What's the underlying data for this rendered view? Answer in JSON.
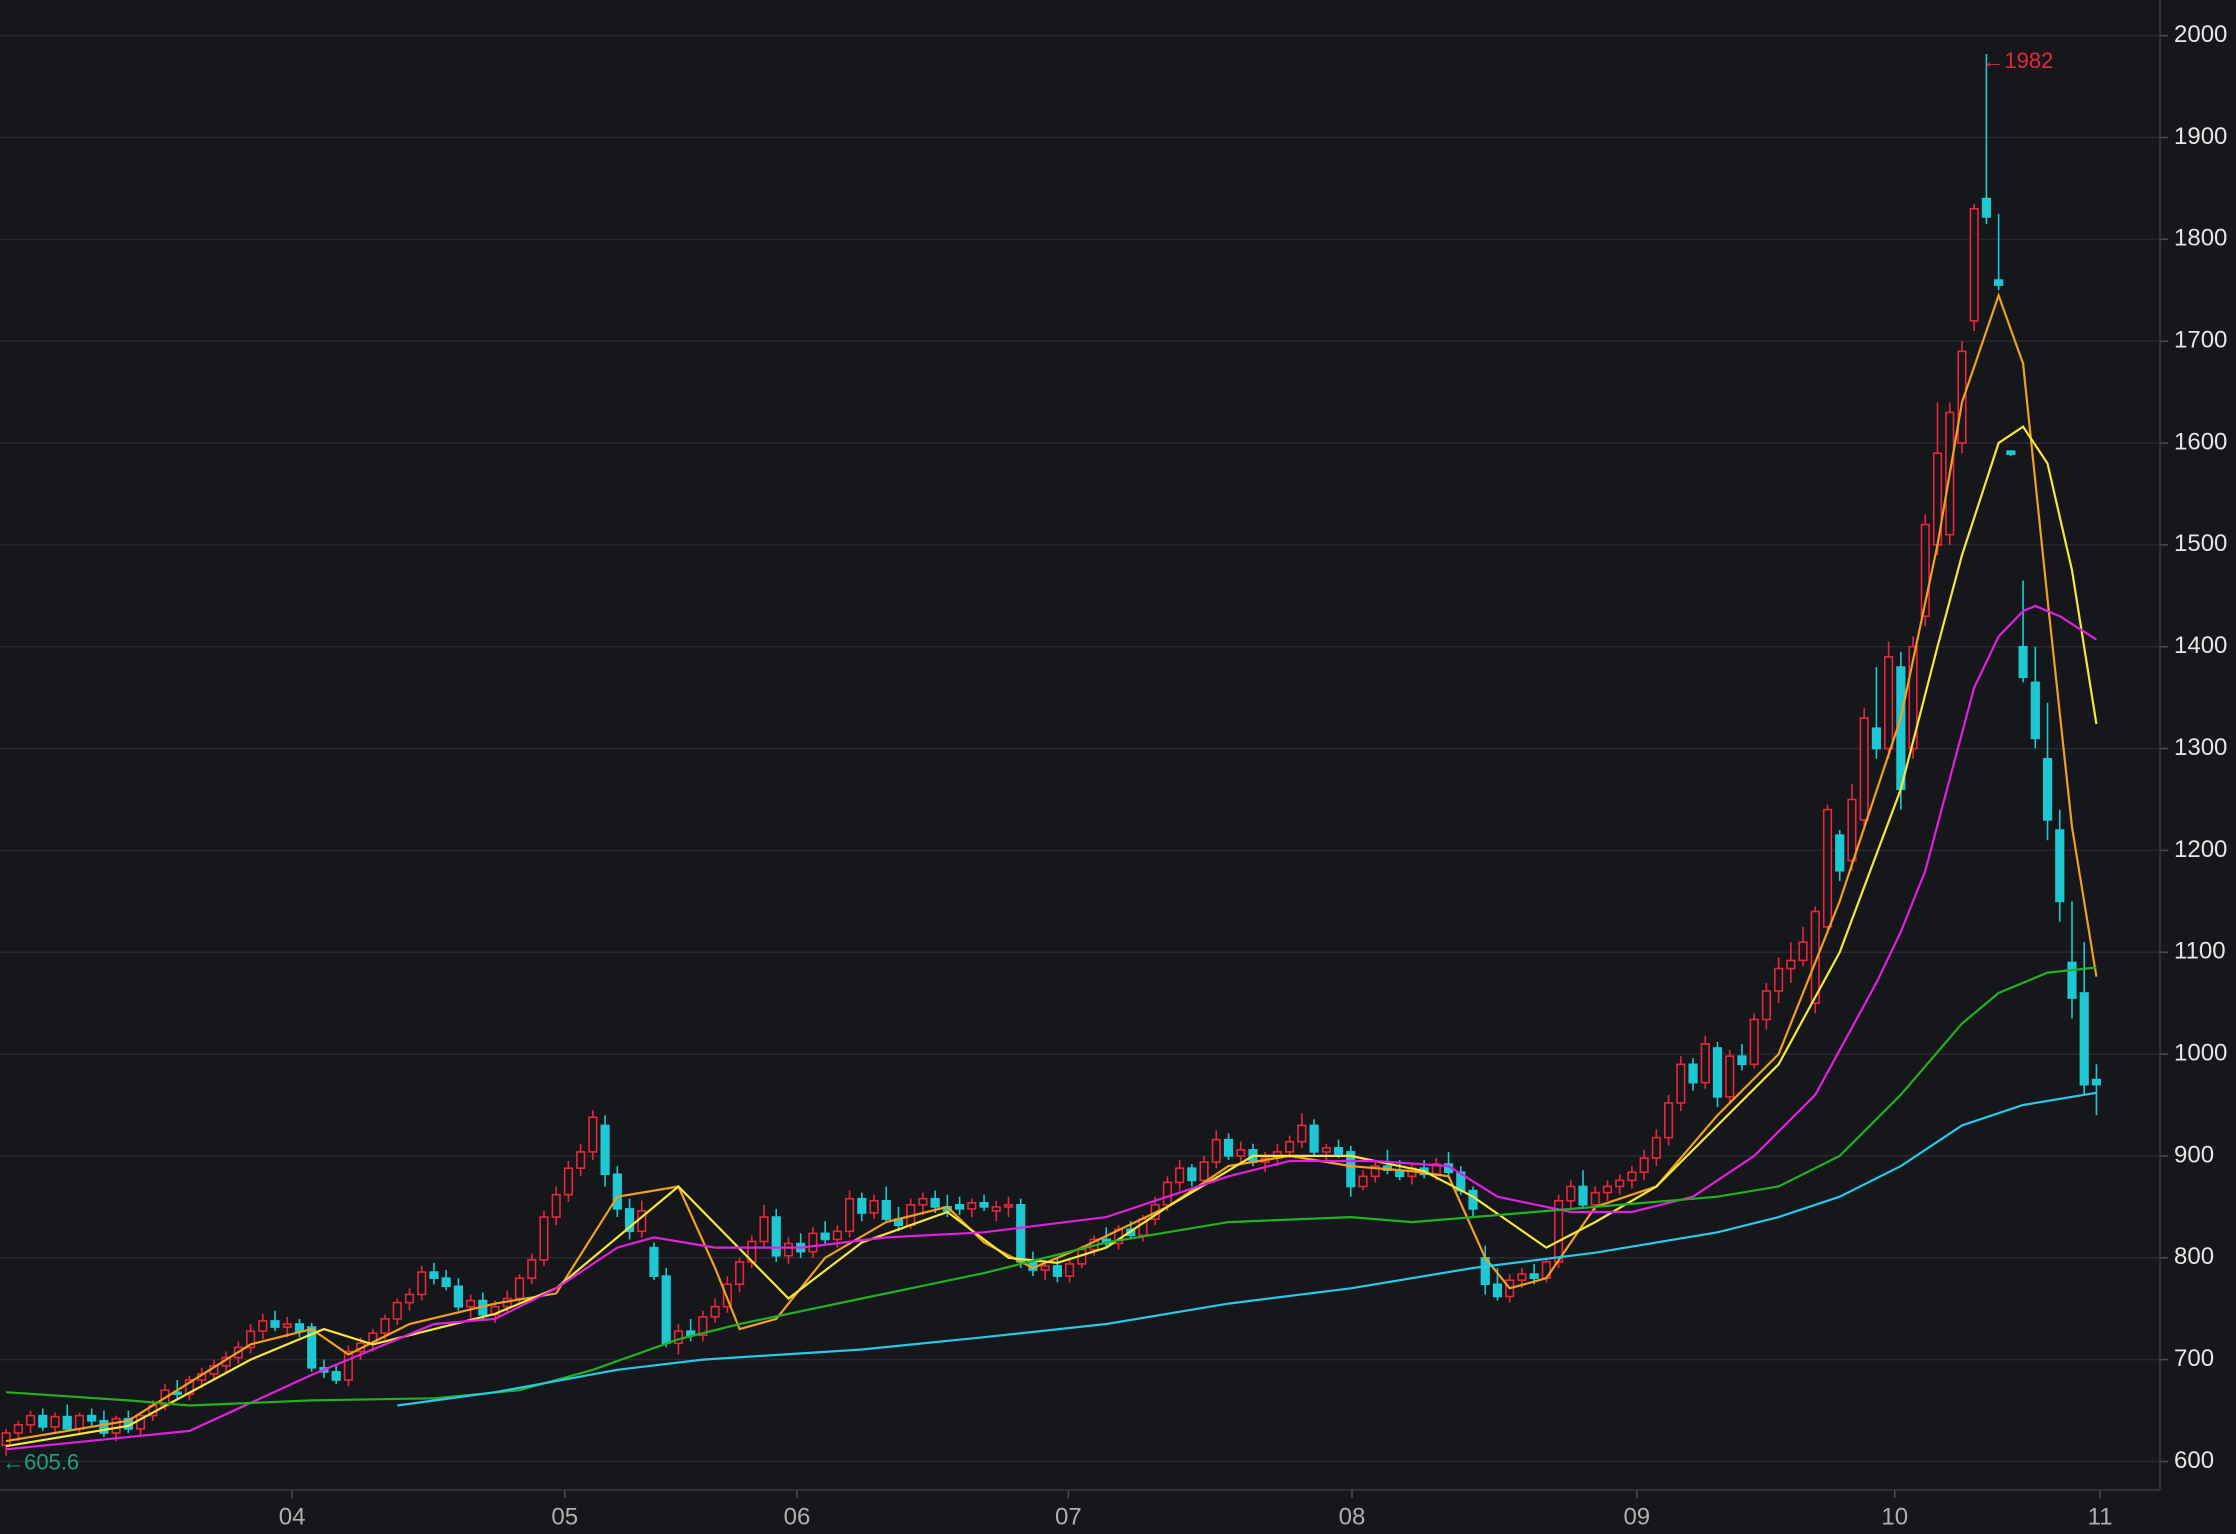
{
  "chart_data": {
    "type": "candlestick",
    "ylim": [
      572,
      2035
    ],
    "yticks": [
      600,
      700,
      800,
      900,
      1000,
      1100,
      1200,
      1300,
      1400,
      1500,
      1600,
      1700,
      1800,
      1900,
      2000
    ],
    "xlim": [
      -0.5,
      176.2
    ],
    "xticks": [
      {
        "value": 23.4,
        "label": "04"
      },
      {
        "value": 45.7,
        "label": "05"
      },
      {
        "value": 64.7,
        "label": "06"
      },
      {
        "value": 86.9,
        "label": "07"
      },
      {
        "value": 110.1,
        "label": "08"
      },
      {
        "value": 133.4,
        "label": "09"
      },
      {
        "value": 154.5,
        "label": "10"
      },
      {
        "value": 171.3,
        "label": "11"
      }
    ],
    "grid": true,
    "up_color": "#e8263b",
    "down_color": "#1ec8d2",
    "ohlc": [
      [
        616,
        632,
        605.6,
        628
      ],
      [
        628,
        640,
        620,
        636
      ],
      [
        636,
        650,
        628,
        645
      ],
      [
        645,
        652,
        630,
        634
      ],
      [
        634,
        648,
        628,
        644
      ],
      [
        644,
        656,
        630,
        632
      ],
      [
        632,
        648,
        626,
        645
      ],
      [
        645,
        652,
        634,
        640
      ],
      [
        640,
        650,
        624,
        628
      ],
      [
        628,
        645,
        620,
        642
      ],
      [
        642,
        650,
        628,
        632
      ],
      [
        632,
        648,
        626,
        645
      ],
      [
        645,
        660,
        640,
        655
      ],
      [
        655,
        676,
        650,
        670
      ],
      [
        668,
        680,
        662,
        666
      ],
      [
        666,
        684,
        660,
        680
      ],
      [
        680,
        692,
        672,
        686
      ],
      [
        686,
        700,
        680,
        694
      ],
      [
        694,
        708,
        688,
        702
      ],
      [
        702,
        718,
        696,
        712
      ],
      [
        712,
        735,
        706,
        728
      ],
      [
        728,
        745,
        720,
        738
      ],
      [
        738,
        748,
        728,
        732
      ],
      [
        732,
        742,
        722,
        735
      ],
      [
        735,
        740,
        722,
        728
      ],
      [
        732,
        736,
        688,
        692
      ],
      [
        692,
        700,
        682,
        688
      ],
      [
        688,
        694,
        676,
        680
      ],
      [
        680,
        714,
        674,
        708
      ],
      [
        708,
        722,
        700,
        716
      ],
      [
        716,
        730,
        708,
        726
      ],
      [
        726,
        744,
        720,
        740
      ],
      [
        740,
        760,
        734,
        756
      ],
      [
        756,
        770,
        748,
        764
      ],
      [
        764,
        792,
        758,
        786
      ],
      [
        786,
        795,
        774,
        780
      ],
      [
        780,
        788,
        768,
        772
      ],
      [
        772,
        780,
        748,
        752
      ],
      [
        752,
        764,
        740,
        758
      ],
      [
        758,
        766,
        738,
        744
      ],
      [
        744,
        758,
        736,
        752
      ],
      [
        752,
        768,
        746,
        760
      ],
      [
        760,
        784,
        756,
        780
      ],
      [
        780,
        804,
        774,
        798
      ],
      [
        798,
        846,
        792,
        840
      ],
      [
        840,
        870,
        832,
        862
      ],
      [
        862,
        895,
        855,
        888
      ],
      [
        888,
        912,
        880,
        904
      ],
      [
        904,
        945,
        896,
        938
      ],
      [
        930,
        940,
        870,
        882
      ],
      [
        882,
        890,
        840,
        848
      ],
      [
        848,
        858,
        818,
        826
      ],
      [
        826,
        856,
        820,
        846
      ],
      [
        810,
        815,
        778,
        782
      ],
      [
        782,
        790,
        712,
        716
      ],
      [
        716,
        735,
        705,
        728
      ],
      [
        728,
        740,
        718,
        724
      ],
      [
        724,
        748,
        718,
        742
      ],
      [
        742,
        760,
        736,
        752
      ],
      [
        752,
        782,
        746,
        774
      ],
      [
        774,
        800,
        766,
        796
      ],
      [
        796,
        822,
        790,
        816
      ],
      [
        816,
        852,
        810,
        840
      ],
      [
        840,
        848,
        796,
        802
      ],
      [
        802,
        820,
        794,
        814
      ],
      [
        814,
        824,
        800,
        806
      ],
      [
        806,
        830,
        800,
        824
      ],
      [
        824,
        836,
        812,
        818
      ],
      [
        818,
        832,
        810,
        826
      ],
      [
        826,
        866,
        820,
        858
      ],
      [
        858,
        864,
        836,
        844
      ],
      [
        844,
        862,
        838,
        856
      ],
      [
        856,
        870,
        836,
        838
      ],
      [
        838,
        850,
        826,
        832
      ],
      [
        832,
        858,
        828,
        852
      ],
      [
        852,
        864,
        842,
        858
      ],
      [
        858,
        866,
        844,
        850
      ],
      [
        850,
        862,
        840,
        846
      ],
      [
        852,
        860,
        842,
        848
      ],
      [
        848,
        858,
        840,
        854
      ],
      [
        854,
        862,
        846,
        850
      ],
      [
        846,
        856,
        836,
        850
      ],
      [
        850,
        860,
        840,
        852
      ],
      [
        852,
        858,
        790,
        796
      ],
      [
        796,
        806,
        782,
        788
      ],
      [
        788,
        798,
        778,
        792
      ],
      [
        792,
        800,
        776,
        782
      ],
      [
        782,
        798,
        776,
        794
      ],
      [
        794,
        812,
        790,
        808
      ],
      [
        808,
        822,
        802,
        818
      ],
      [
        818,
        830,
        810,
        814
      ],
      [
        814,
        832,
        808,
        828
      ],
      [
        828,
        836,
        818,
        822
      ],
      [
        822,
        842,
        816,
        838
      ],
      [
        838,
        860,
        832,
        852
      ],
      [
        852,
        880,
        846,
        874
      ],
      [
        874,
        896,
        866,
        888
      ],
      [
        888,
        892,
        870,
        876
      ],
      [
        876,
        900,
        870,
        894
      ],
      [
        894,
        925,
        888,
        916
      ],
      [
        916,
        922,
        896,
        900
      ],
      [
        900,
        914,
        892,
        906
      ],
      [
        906,
        912,
        890,
        894
      ],
      [
        894,
        904,
        884,
        898
      ],
      [
        898,
        912,
        890,
        904
      ],
      [
        904,
        920,
        898,
        914
      ],
      [
        914,
        942,
        908,
        930
      ],
      [
        930,
        936,
        900,
        904
      ],
      [
        904,
        912,
        894,
        908
      ],
      [
        908,
        916,
        898,
        902
      ],
      [
        904,
        910,
        860,
        870
      ],
      [
        870,
        886,
        866,
        880
      ],
      [
        880,
        894,
        874,
        890
      ],
      [
        890,
        906,
        882,
        886
      ],
      [
        886,
        896,
        876,
        880
      ],
      [
        880,
        892,
        872,
        888
      ],
      [
        888,
        896,
        878,
        882
      ],
      [
        882,
        898,
        876,
        892
      ],
      [
        892,
        904,
        880,
        884
      ],
      [
        884,
        890,
        862,
        866
      ],
      [
        866,
        870,
        840,
        848
      ],
      [
        800,
        812,
        764,
        774
      ],
      [
        774,
        790,
        758,
        762
      ],
      [
        762,
        784,
        756,
        778
      ],
      [
        778,
        790,
        770,
        784
      ],
      [
        784,
        794,
        774,
        780
      ],
      [
        780,
        800,
        776,
        796
      ],
      [
        796,
        862,
        790,
        856
      ],
      [
        856,
        876,
        848,
        870
      ],
      [
        870,
        886,
        848,
        852
      ],
      [
        852,
        870,
        846,
        864
      ],
      [
        864,
        876,
        856,
        870
      ],
      [
        870,
        882,
        862,
        876
      ],
      [
        876,
        890,
        868,
        884
      ],
      [
        884,
        906,
        876,
        898
      ],
      [
        898,
        926,
        890,
        918
      ],
      [
        918,
        960,
        910,
        952
      ],
      [
        952,
        998,
        944,
        990
      ],
      [
        990,
        996,
        964,
        972
      ],
      [
        972,
        1018,
        966,
        1010
      ],
      [
        1006,
        1012,
        948,
        958
      ],
      [
        958,
        1004,
        952,
        998
      ],
      [
        998,
        1010,
        984,
        990
      ],
      [
        990,
        1040,
        986,
        1034
      ],
      [
        1034,
        1070,
        1024,
        1062
      ],
      [
        1062,
        1095,
        1050,
        1084
      ],
      [
        1084,
        1110,
        1070,
        1092
      ],
      [
        1092,
        1125,
        1086,
        1110
      ],
      [
        1050,
        1145,
        1040,
        1140
      ],
      [
        1125,
        1245,
        1118,
        1240
      ],
      [
        1215,
        1220,
        1170,
        1180
      ],
      [
        1190,
        1265,
        1180,
        1250
      ],
      [
        1230,
        1340,
        1222,
        1330
      ],
      [
        1320,
        1380,
        1290,
        1300
      ],
      [
        1300,
        1405,
        1290,
        1390
      ],
      [
        1380,
        1395,
        1240,
        1260
      ],
      [
        1300,
        1410,
        1290,
        1400
      ],
      [
        1430,
        1530,
        1420,
        1520
      ],
      [
        1500,
        1640,
        1490,
        1590
      ],
      [
        1510,
        1640,
        1500,
        1630
      ],
      [
        1600,
        1700,
        1590,
        1690
      ],
      [
        1720,
        1835,
        1710,
        1830
      ],
      [
        1840,
        1982,
        1815,
        1822
      ],
      [
        1760,
        1825,
        1750,
        1755
      ],
      [
        1592,
        1593,
        1587,
        1589
      ],
      [
        1400,
        1465,
        1365,
        1370
      ],
      [
        1365,
        1400,
        1300,
        1310
      ],
      [
        1290,
        1345,
        1210,
        1230
      ],
      [
        1220,
        1240,
        1130,
        1150
      ],
      [
        1090,
        1150,
        1035,
        1055
      ],
      [
        1060,
        1110,
        960,
        970
      ],
      [
        975,
        990,
        940,
        970
      ]
    ],
    "series": [
      {
        "color": "#f0a020",
        "x": [
          0,
          10,
          20,
          25,
          28,
          33,
          40,
          45,
          50,
          55,
          58,
          60,
          63,
          67,
          72,
          77,
          80,
          84,
          88,
          95,
          100,
          105,
          110,
          115,
          118,
          121,
          123,
          126,
          130,
          135,
          140,
          145,
          150,
          155,
          158,
          160,
          163,
          165,
          167,
          169,
          171
        ],
        "values": [
          620,
          640,
          715,
          730,
          705,
          735,
          755,
          765,
          860,
          870,
          790,
          730,
          740,
          800,
          835,
          850,
          815,
          790,
          810,
          850,
          890,
          900,
          890,
          885,
          880,
          800,
          770,
          780,
          850,
          870,
          940,
          1000,
          1150,
          1330,
          1500,
          1640,
          1745,
          1678,
          1447,
          1223,
          1076
        ]
      },
      {
        "color": "#f5e63c",
        "x": [
          0,
          10,
          20,
          26,
          30,
          40,
          45,
          55,
          64,
          70,
          77,
          82,
          86,
          90,
          95,
          102,
          110,
          116,
          120,
          126,
          130,
          135,
          140,
          145,
          150,
          155,
          158,
          160,
          163,
          165,
          167,
          169,
          171
        ],
        "values": [
          615,
          635,
          700,
          730,
          715,
          745,
          770,
          870,
          760,
          815,
          845,
          800,
          795,
          810,
          850,
          900,
          900,
          885,
          860,
          810,
          835,
          870,
          930,
          990,
          1100,
          1260,
          1400,
          1490,
          1600,
          1616,
          1580,
          1475,
          1324
        ]
      },
      {
        "color": "#e020e0",
        "x": [
          0,
          15,
          25,
          35,
          40,
          45,
          50,
          53,
          58,
          65,
          72,
          80,
          90,
          100,
          105,
          112,
          118,
          122,
          128,
          133,
          138,
          143,
          148,
          153,
          155,
          157,
          159,
          161,
          163,
          165,
          166,
          168,
          171
        ],
        "values": [
          612,
          630,
          685,
          735,
          740,
          770,
          810,
          820,
          810,
          810,
          820,
          825,
          840,
          880,
          895,
          895,
          890,
          860,
          845,
          845,
          860,
          900,
          960,
          1070,
          1120,
          1180,
          1270,
          1360,
          1410,
          1435,
          1440,
          1430,
          1407
        ]
      },
      {
        "color": "#22b022",
        "x": [
          0,
          10,
          15,
          25,
          35,
          42,
          48,
          55,
          60,
          70,
          80,
          90,
          100,
          110,
          115,
          120,
          130,
          140,
          145,
          150,
          155,
          160,
          163,
          167,
          171
        ],
        "values": [
          668,
          660,
          655,
          660,
          662,
          670,
          690,
          720,
          735,
          760,
          785,
          815,
          835,
          840,
          835,
          840,
          850,
          860,
          870,
          900,
          960,
          1030,
          1060,
          1080,
          1085
        ]
      },
      {
        "color": "#27c9e6",
        "x": [
          32,
          40,
          50,
          57,
          70,
          80,
          90,
          100,
          110,
          120,
          130,
          140,
          145,
          150,
          155,
          160,
          165,
          171
        ],
        "values": [
          655,
          668,
          690,
          700,
          710,
          722,
          735,
          755,
          770,
          790,
          805,
          825,
          840,
          860,
          890,
          930,
          950,
          962
        ]
      }
    ],
    "annotations": [
      {
        "text": "←1982",
        "x": 162,
        "y": 1982,
        "color": "#e8263b"
      },
      {
        "text": "←605.6",
        "x": 0,
        "y": 605.6,
        "color": "#1aa37a"
      }
    ]
  }
}
